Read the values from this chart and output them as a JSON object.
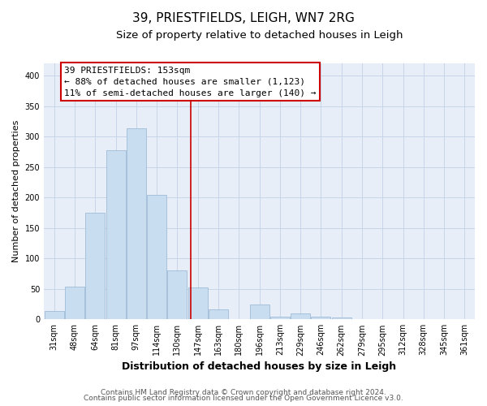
{
  "title": "39, PRIESTFIELDS, LEIGH, WN7 2RG",
  "subtitle": "Size of property relative to detached houses in Leigh",
  "xlabel": "Distribution of detached houses by size in Leigh",
  "ylabel": "Number of detached properties",
  "bar_labels": [
    "31sqm",
    "48sqm",
    "64sqm",
    "81sqm",
    "97sqm",
    "114sqm",
    "130sqm",
    "147sqm",
    "163sqm",
    "180sqm",
    "196sqm",
    "213sqm",
    "229sqm",
    "246sqm",
    "262sqm",
    "279sqm",
    "295sqm",
    "312sqm",
    "328sqm",
    "345sqm",
    "361sqm"
  ],
  "bar_heights": [
    14,
    54,
    175,
    277,
    313,
    204,
    80,
    53,
    17,
    0,
    25,
    5,
    10,
    5,
    3,
    1,
    1,
    0,
    0,
    0,
    0
  ],
  "bar_color": "#c8ddf0",
  "bar_edge_color": "#a0bcd8",
  "vline_index": 7,
  "vline_color": "#cc0000",
  "annotation_title": "39 PRIESTFIELDS: 153sqm",
  "annotation_line1": "← 88% of detached houses are smaller (1,123)",
  "annotation_line2": "11% of semi-detached houses are larger (140) →",
  "annotation_box_color": "#ffffff",
  "annotation_box_edge": "#cc0000",
  "ylim": [
    0,
    420
  ],
  "yticks": [
    0,
    50,
    100,
    150,
    200,
    250,
    300,
    350,
    400
  ],
  "footer_line1": "Contains HM Land Registry data © Crown copyright and database right 2024.",
  "footer_line2": "Contains public sector information licensed under the Open Government Licence v3.0.",
  "bg_color": "#ffffff",
  "plot_bg_color": "#e8eef8",
  "grid_color": "#c8d4e8",
  "title_fontsize": 11,
  "subtitle_fontsize": 9.5,
  "xlabel_fontsize": 9,
  "ylabel_fontsize": 8,
  "tick_fontsize": 7,
  "footer_fontsize": 6.5,
  "ann_fontsize": 8
}
